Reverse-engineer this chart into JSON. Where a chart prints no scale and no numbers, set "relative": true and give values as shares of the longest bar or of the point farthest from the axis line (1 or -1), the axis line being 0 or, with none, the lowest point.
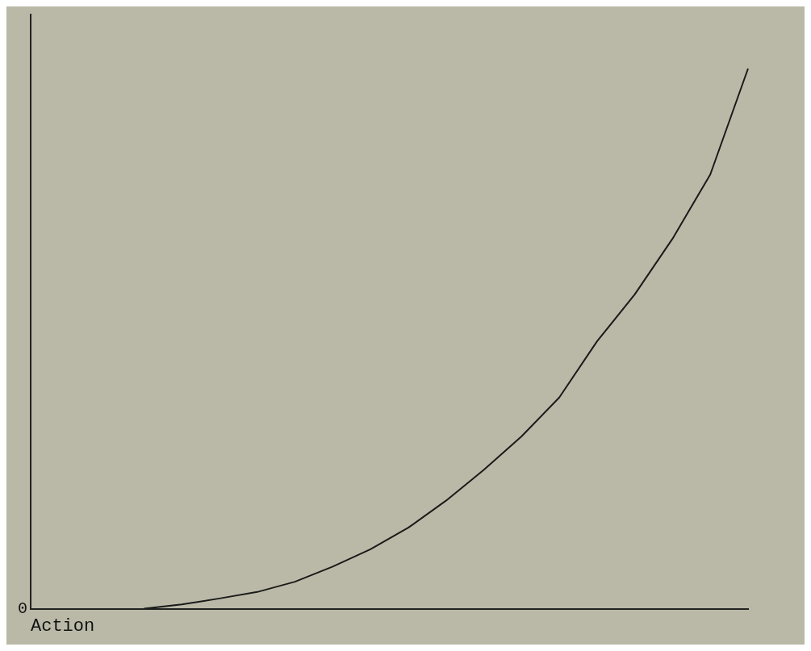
{
  "chart_data": {
    "type": "line",
    "xlabel": "Action",
    "relative": true,
    "annotations": [
      "0"
    ],
    "categories": [
      null,
      null,
      null,
      null,
      null,
      null,
      null,
      null,
      null,
      null,
      null,
      null,
      null,
      null,
      null,
      null,
      null,
      null,
      null,
      null
    ],
    "series": [
      {
        "color": "#1a1a1a",
        "values": [
          null,
          null,
          null,
          0,
          0.008,
          0.019,
          0.031,
          0.05,
          0.078,
          0.11,
          0.15,
          0.2,
          0.257,
          0.319,
          0.391,
          0.495,
          0.582,
          0.685,
          0.804,
          1
        ]
      }
    ],
    "grid": false,
    "legend": false,
    "marker": "none",
    "line_style": "solid"
  }
}
